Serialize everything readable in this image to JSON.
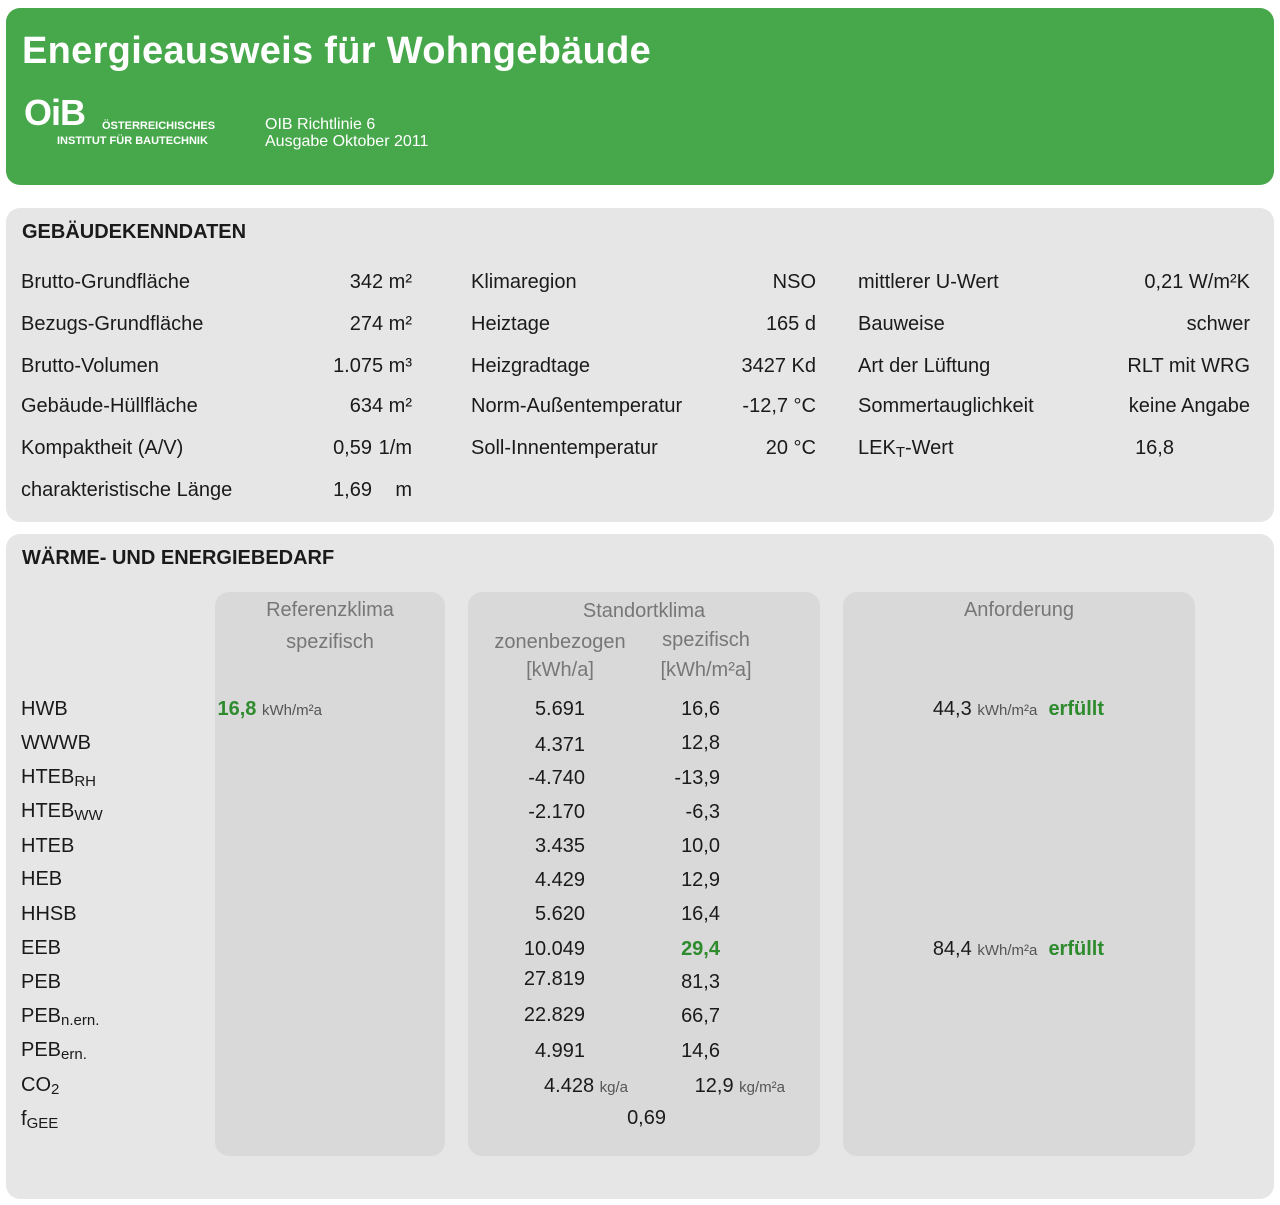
{
  "header": {
    "title": "Energieausweis für Wohngebäude",
    "logo_text": "OiB",
    "logo_line1": "ÖSTERREICHISCHES",
    "logo_line2": "INSTITUT FÜR BAUTECHNIK",
    "meta_line1": "OIB Richtlinie 6",
    "meta_line2": "Ausgabe Oktober 2011"
  },
  "gebaeude": {
    "heading": "GEBÄUDEKENNDATEN",
    "col1": [
      {
        "label": "Brutto-Grundfläche",
        "value": "342 m²"
      },
      {
        "label": "Bezugs-Grundfläche",
        "value": "274 m²"
      },
      {
        "label": "Brutto-Volumen",
        "value": "1.075 m³"
      },
      {
        "label": "Gebäude-Hüllfläche",
        "value": "634 m²"
      },
      {
        "label": "Kompaktheit (A/V)",
        "value": "0,59",
        "unit": "1/m"
      },
      {
        "label": "charakteristische Länge",
        "value": "1,69",
        "unit": "m"
      }
    ],
    "col2": [
      {
        "label": "Klimaregion",
        "value": "NSO"
      },
      {
        "label": "Heiztage",
        "value": "165 d"
      },
      {
        "label": "Heizgradtage",
        "value": "3427 Kd"
      },
      {
        "label": "Norm-Außentemperatur",
        "value": "-12,7 °C"
      },
      {
        "label": "Soll-Innentemperatur",
        "value": "20 °C"
      }
    ],
    "col3": [
      {
        "label": "mittlerer U-Wert",
        "value": "0,21 W/m²K"
      },
      {
        "label": "Bauweise",
        "value": "schwer"
      },
      {
        "label": "Art der Lüftung",
        "value": "RLT mit WRG"
      },
      {
        "label": "Sommertauglichkeit",
        "value": "keine Angabe"
      },
      {
        "label_main": "LEK",
        "label_sub": "T",
        "label_rest": "-Wert",
        "value": "16,8"
      }
    ]
  },
  "energie": {
    "heading": "WÄRME- UND ENERGIEBEDARF",
    "ref_head1": "Referenzklima",
    "ref_head2": "spezifisch",
    "std_head": "Standortklima",
    "std_sub1a": "zonenbezogen",
    "std_sub1b": "[kWh/a]",
    "std_sub2a": "spezifisch",
    "std_sub2b": "[kWh/m²a]",
    "anf_head": "Anforderung",
    "rows": [
      {
        "label": "HWB",
        "sub": "",
        "zone": "5.691",
        "spez": "16,6"
      },
      {
        "label": "WWWB",
        "sub": "",
        "zone": "4.371",
        "spez": "12,8"
      },
      {
        "label": "HTEB",
        "sub": "RH",
        "zone": "-4.740",
        "spez": "-13,9"
      },
      {
        "label": "HTEB",
        "sub": "WW",
        "zone": "-2.170",
        "spez": "-6,3"
      },
      {
        "label": "HTEB",
        "sub": "",
        "zone": "3.435",
        "spez": "10,0"
      },
      {
        "label": "HEB",
        "sub": "",
        "zone": "4.429",
        "spez": "12,9"
      },
      {
        "label": "HHSB",
        "sub": "",
        "zone": "5.620",
        "spez": "16,4"
      },
      {
        "label": "EEB",
        "sub": "",
        "zone": "10.049",
        "spez": "29,4"
      },
      {
        "label": "PEB",
        "sub": "",
        "zone": "27.819",
        "spez": "81,3"
      },
      {
        "label": "PEB",
        "sub": "n.ern.",
        "zone": "22.829",
        "spez": "66,7"
      },
      {
        "label": "PEB",
        "sub": "ern.",
        "zone": "4.991",
        "spez": "14,6"
      },
      {
        "label": "CO",
        "sub": "2",
        "zone": "4.428",
        "zone_unit": "kg/a",
        "spez": "12,9",
        "spez_unit": "kg/m²a"
      },
      {
        "label": "f",
        "sub": "GEE",
        "fgee": "0,69"
      }
    ],
    "ref_hwb": "16,8",
    "ref_hwb_unit": "kWh/m²a",
    "anf_hwb": "44,3",
    "anf_hwb_unit": "kWh/m²a",
    "anf_hwb_status": "erfüllt",
    "anf_eeb": "84,4",
    "anf_eeb_unit": "kWh/m²a",
    "anf_eeb_status": "erfüllt"
  },
  "colors": {
    "header_green": "#47a84b",
    "status_green": "#2e8b2e",
    "panel_gray": "#e6e6e6",
    "column_gray": "#d9d9d9"
  }
}
